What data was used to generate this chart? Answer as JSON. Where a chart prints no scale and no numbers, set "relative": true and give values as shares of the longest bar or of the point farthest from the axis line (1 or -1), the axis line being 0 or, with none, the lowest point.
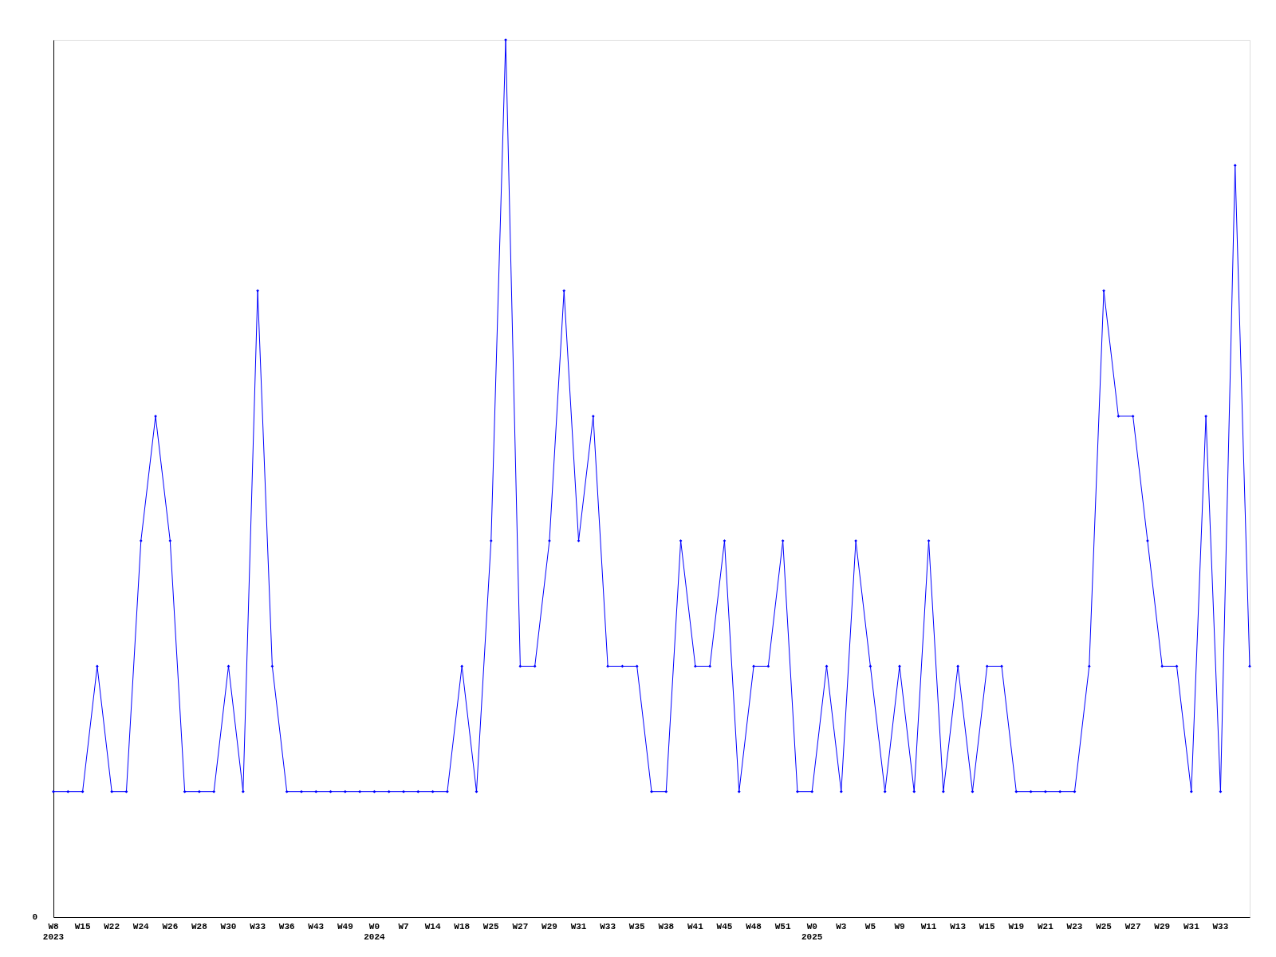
{
  "chart_data": {
    "type": "line",
    "relative": true,
    "marker": "diamond",
    "line_style": "solid",
    "grid": false,
    "categories": [
      "W8\n2023",
      null,
      "W15",
      null,
      "W22",
      null,
      "W24",
      null,
      "W26",
      null,
      "W28",
      null,
      "W30",
      null,
      "W33",
      null,
      "W36",
      null,
      "W43",
      null,
      "W49",
      null,
      "W0\n2024",
      null,
      "W7",
      null,
      "W14",
      null,
      "W18",
      null,
      "W25",
      null,
      "W27",
      null,
      "W29",
      null,
      "W31",
      null,
      "W33",
      null,
      "W35",
      null,
      "W38",
      null,
      "W41",
      null,
      "W45",
      null,
      "W48",
      null,
      "W51",
      null,
      "W0\n2025",
      null,
      "W3",
      null,
      "W5",
      null,
      "W9",
      null,
      "W11",
      null,
      "W13",
      null,
      "W15",
      null,
      "W19",
      null,
      "W21",
      null,
      "W23",
      null,
      "W25",
      null,
      "W27",
      null,
      "W29",
      null,
      "W31",
      null,
      "W33",
      null,
      null
    ],
    "series": [
      {
        "color": "#0000ff",
        "values": [
          0.143,
          0.143,
          0.143,
          0.286,
          0.143,
          0.143,
          0.429,
          0.571,
          0.429,
          0.143,
          0.143,
          0.143,
          0.286,
          0.143,
          0.714,
          0.286,
          0.143,
          0.143,
          0.143,
          0.143,
          0.143,
          0.143,
          0.143,
          0.143,
          0.143,
          0.143,
          0.143,
          0.143,
          0.286,
          0.143,
          0.429,
          1,
          0.286,
          0.286,
          0.429,
          0.714,
          0.429,
          0.571,
          0.286,
          0.286,
          0.286,
          0.143,
          0.143,
          0.429,
          0.286,
          0.286,
          0.429,
          0.143,
          0.286,
          0.286,
          0.429,
          0.143,
          0.143,
          0.286,
          0.143,
          0.429,
          0.286,
          0.143,
          0.286,
          0.143,
          0.429,
          0.143,
          0.286,
          0.143,
          0.286,
          0.286,
          0.143,
          0.143,
          0.143,
          0.143,
          0.143,
          0.286,
          0.714,
          0.571,
          0.571,
          0.429,
          0.286,
          0.286,
          0.143,
          0.571,
          0.143,
          0.857,
          0.286
        ]
      }
    ],
    "annotations": [
      "0"
    ]
  }
}
